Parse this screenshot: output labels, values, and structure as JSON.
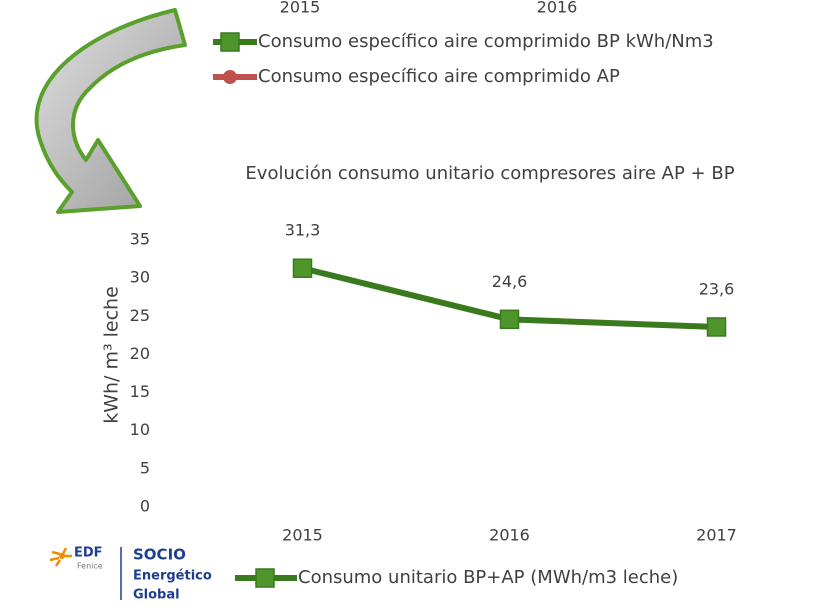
{
  "top_fragment": {
    "x_labels": [
      "2015",
      "2016"
    ],
    "legend": [
      {
        "name": "Consumo específico aire comprimido BP kWh/Nm3",
        "color": "#3a7a1e",
        "marker": "square"
      },
      {
        "name": "Consumo específico aire comprimido AP",
        "color": "#c0504d",
        "marker": "circle"
      }
    ]
  },
  "chart_data": {
    "type": "line",
    "title": "Evolución consumo unitario compresores aire AP + BP",
    "y_label": "kWh/ m³ leche",
    "categories": [
      "2015",
      "2016",
      "2017"
    ],
    "series": [
      {
        "name": "Consumo unitario BP+AP (MWh/m3 leche)",
        "color": "#3a7a1e",
        "values": [
          31.3,
          24.6,
          23.6
        ],
        "value_labels": [
          "31,3",
          "24,6",
          "23,6"
        ]
      }
    ],
    "ylim": [
      0,
      35
    ],
    "yticks": [
      0,
      5,
      10,
      15,
      20,
      25,
      30,
      35
    ],
    "grid": false,
    "legend": "bottom"
  },
  "logo": {
    "brand": "EDF",
    "sub": "Fenice",
    "lines": [
      "SOCIO",
      "Energético",
      "Global"
    ]
  }
}
